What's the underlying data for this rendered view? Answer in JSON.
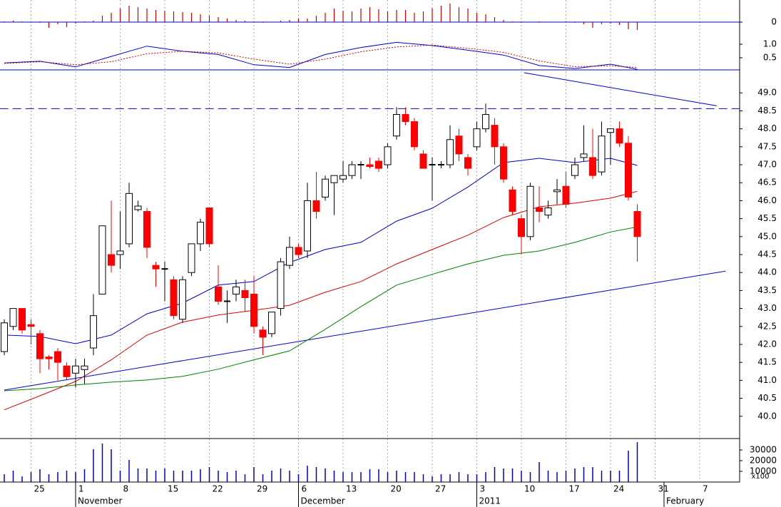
{
  "chart_data": {
    "type": "candlestick",
    "categories": [
      null,
      null,
      null,
      "25",
      null,
      null,
      null,
      null,
      "1",
      null,
      null,
      null,
      null,
      "8",
      null,
      null,
      null,
      null,
      "15",
      null,
      null,
      null,
      null,
      "22",
      null,
      null,
      null,
      null,
      "29",
      null,
      null,
      null,
      null,
      "6",
      null,
      null,
      null,
      null,
      "13",
      null,
      null,
      null,
      null,
      "20",
      null,
      null,
      null,
      null,
      "27",
      null,
      null,
      null,
      null,
      "3",
      null,
      null,
      null,
      null,
      "10",
      null,
      null,
      null,
      null,
      "17",
      null,
      null,
      null,
      null,
      "24",
      null,
      null,
      null,
      null,
      "31",
      null,
      null,
      null,
      null,
      "7",
      null,
      null,
      null,
      null
    ],
    "month_labels": [
      "November",
      "December",
      "2011",
      "February"
    ],
    "open": [
      41.8,
      42.5,
      43.0,
      42.55,
      42.3,
      41.65,
      41.8,
      41.4,
      41.2,
      41.3,
      41.9,
      43.4,
      44.5,
      44.5,
      44.8,
      45.75,
      45.7,
      44.2,
      44.1,
      43.8,
      42.7,
      44.0,
      44.8,
      45.8,
      43.6,
      43.2,
      43.4,
      43.5,
      43.4,
      42.4,
      42.3,
      43.0,
      44.2,
      44.7,
      44.6,
      46.0,
      46.1,
      46.5,
      46.6,
      46.7,
      47.0,
      47.0,
      47.1,
      47.0,
      47.8,
      48.4,
      48.2,
      47.3,
      47.0,
      47.0,
      47.0,
      47.8,
      47.2,
      47.5,
      48.0,
      48.1,
      47.5,
      46.3,
      45.5,
      45.0,
      45.8,
      45.6,
      46.25,
      46.4,
      46.7,
      47.2,
      47.2,
      46.8,
      47.9,
      48.0,
      47.6,
      45.7,
      null,
      null,
      null,
      null,
      null,
      null,
      null,
      null,
      null,
      null,
      null
    ],
    "high": [
      42.7,
      43.0,
      43.0,
      42.7,
      42.4,
      41.7,
      41.9,
      41.5,
      41.6,
      41.6,
      43.4,
      45.3,
      46.0,
      45.7,
      46.5,
      46.0,
      45.8,
      44.3,
      44.3,
      43.9,
      43.9,
      44.8,
      45.5,
      45.8,
      44.2,
      43.5,
      43.8,
      43.8,
      43.9,
      42.5,
      42.9,
      44.4,
      45.0,
      44.8,
      46.5,
      46.8,
      46.7,
      46.7,
      47.1,
      47.1,
      47.1,
      47.2,
      47.2,
      47.6,
      48.6,
      48.6,
      48.3,
      47.4,
      47.2,
      47.1,
      48.1,
      48.0,
      47.3,
      48.2,
      48.7,
      48.3,
      47.6,
      46.4,
      45.6,
      46.5,
      46.4,
      46.0,
      46.6,
      46.8,
      47.2,
      48.1,
      48.0,
      48.2,
      48.0,
      48.2,
      47.8,
      45.9,
      null,
      null,
      null,
      null,
      null,
      null,
      null,
      null,
      null,
      null,
      null
    ],
    "low": [
      41.7,
      42.4,
      42.3,
      42.0,
      41.2,
      41.3,
      41.0,
      41.0,
      40.8,
      40.9,
      41.7,
      43.4,
      44.0,
      44.1,
      44.7,
      45.7,
      44.4,
      43.6,
      43.2,
      42.7,
      42.6,
      43.9,
      44.6,
      44.7,
      43.1,
      42.6,
      43.2,
      42.9,
      42.3,
      41.7,
      42.2,
      42.8,
      44.1,
      44.4,
      44.4,
      45.5,
      46.0,
      45.6,
      46.5,
      46.6,
      46.6,
      46.9,
      46.8,
      46.9,
      47.7,
      48.1,
      47.4,
      46.9,
      46.0,
      46.9,
      46.9,
      47.1,
      46.7,
      47.4,
      47.9,
      47.0,
      46.5,
      45.6,
      44.5,
      44.9,
      45.4,
      45.5,
      45.9,
      45.8,
      46.6,
      47.1,
      46.6,
      46.7,
      47.0,
      47.5,
      46.0,
      44.3,
      null,
      null,
      null,
      null,
      null,
      null,
      null,
      null,
      null,
      null,
      null
    ],
    "close": [
      42.6,
      43.0,
      42.4,
      42.5,
      41.6,
      41.6,
      41.5,
      41.1,
      41.4,
      41.4,
      42.8,
      45.3,
      44.2,
      44.6,
      46.2,
      45.85,
      44.7,
      44.1,
      44.1,
      42.8,
      43.8,
      44.8,
      45.4,
      44.8,
      43.2,
      43.2,
      43.6,
      43.3,
      42.5,
      42.2,
      42.9,
      44.3,
      44.7,
      44.5,
      46.0,
      45.7,
      46.6,
      46.7,
      46.7,
      47.0,
      47.0,
      46.95,
      46.9,
      47.5,
      48.4,
      48.2,
      47.5,
      46.9,
      47.0,
      47.0,
      47.7,
      47.3,
      46.9,
      48.0,
      48.4,
      47.5,
      46.6,
      45.7,
      45.0,
      46.4,
      45.7,
      45.8,
      46.3,
      45.9,
      47.0,
      47.3,
      46.7,
      47.8,
      48.0,
      47.6,
      46.1,
      45.0,
      null,
      null,
      null,
      null,
      null,
      null,
      null,
      null,
      null,
      null,
      null
    ],
    "up_color": "#ffffff",
    "down_color": "#ff0000",
    "ylim": [
      39.38,
      49.64
    ],
    "yticks": [
      {
        "value": 40,
        "label": "40.0"
      },
      40.5,
      {
        "value": 41,
        "label": "41.0"
      },
      41.5,
      {
        "value": 42,
        "label": "42.0"
      },
      42.5,
      {
        "value": 43,
        "label": "43.0"
      },
      43.5,
      {
        "value": 44,
        "label": "44.0"
      },
      44.5,
      {
        "value": 45,
        "label": "45.0"
      },
      45.5,
      {
        "value": 46,
        "label": "46.0"
      },
      46.5,
      {
        "value": 47,
        "label": "47.0"
      },
      47.5,
      {
        "value": 48,
        "label": "48.0"
      },
      48.5,
      {
        "value": 49,
        "label": "49.0"
      }
    ],
    "xgrid": true,
    "moving_averages": [
      {
        "color": "#0000cc",
        "x": [
          0,
          4,
          8,
          12,
          16,
          20,
          24,
          28,
          32,
          36,
          40,
          44,
          48,
          52,
          56,
          60,
          64,
          68,
          71
        ],
        "values": [
          42.26,
          42.22,
          42.02,
          42.26,
          42.85,
          43.15,
          43.65,
          43.75,
          44.28,
          44.64,
          44.84,
          45.43,
          45.79,
          46.38,
          47.06,
          47.18,
          47.06,
          47.18,
          46.98
        ]
      },
      {
        "color": "#dd0000",
        "x": [
          0,
          4,
          8,
          12,
          16,
          20,
          24,
          28,
          32,
          36,
          40,
          44,
          48,
          52,
          56,
          60,
          64,
          68,
          71
        ],
        "values": [
          40.18,
          40.57,
          40.97,
          41.57,
          42.26,
          42.62,
          42.82,
          42.95,
          43.09,
          43.45,
          43.75,
          44.24,
          44.64,
          45.04,
          45.53,
          45.83,
          45.93,
          46.07,
          46.26
        ]
      },
      {
        "color": "#008000",
        "x": [
          0,
          4,
          8,
          12,
          16,
          20,
          24,
          28,
          32,
          36,
          40,
          44,
          48,
          52,
          56,
          60,
          64,
          68,
          71
        ],
        "values": [
          40.71,
          40.77,
          40.87,
          40.95,
          41.01,
          41.11,
          41.31,
          41.57,
          41.82,
          42.42,
          43.05,
          43.65,
          43.95,
          44.24,
          44.48,
          44.6,
          44.84,
          45.13,
          45.27
        ]
      }
    ],
    "trend_lines": [
      {
        "color": "#0000cc",
        "x": [
          0,
          80.9
        ],
        "values": [
          40.73,
          44.04
        ]
      },
      {
        "color": "#0000cc",
        "x": [
          58.3,
          79.9
        ],
        "values": [
          49.56,
          48.64
        ]
      },
      {
        "color": "#0000cc",
        "dashed": true,
        "x": [
          -0.5,
          82.5
        ],
        "values": [
          48.56,
          48.56
        ]
      }
    ],
    "histogram": {
      "color": "#cc0000",
      "ylim": [
        -0.14,
        0.31
      ],
      "yticks": [
        0
      ],
      "values": [
        0.01,
        0.02,
        0.01,
        0.0,
        -0.01,
        -0.08,
        -0.03,
        -0.07,
        -0.02,
        0.01,
        0.02,
        0.09,
        0.13,
        0.19,
        0.23,
        0.21,
        0.19,
        0.17,
        0.16,
        0.15,
        0.14,
        0.13,
        0.11,
        0.09,
        0.07,
        0.05,
        0.03,
        0.02,
        0.01,
        -0.01,
        0.0,
        0.02,
        0.03,
        0.05,
        0.05,
        0.09,
        0.13,
        0.19,
        0.16,
        0.15,
        0.19,
        0.21,
        0.18,
        0.15,
        0.17,
        0.17,
        0.13,
        0.15,
        0.19,
        0.23,
        0.26,
        0.21,
        0.19,
        0.13,
        0.11,
        0.07,
        0.03,
        0.01,
        -0.01,
        0.0,
        0.01,
        0.0,
        0.0,
        0.01,
        -0.01,
        -0.03,
        -0.08,
        -0.03,
        -0.02,
        -0.04,
        -0.1,
        -0.11,
        null,
        null,
        null,
        null,
        null,
        null,
        null,
        null,
        null,
        null,
        null
      ]
    },
    "macd": {
      "ylim": [
        0.05,
        1.45
      ],
      "yticks": [
        {
          "value": 1,
          "label": "1.0"
        },
        0.5
      ],
      "series": [
        {
          "color": "#0000cc",
          "x": [
            0,
            4,
            8,
            12,
            16,
            20,
            24,
            28,
            32,
            36,
            40,
            44,
            48,
            52,
            56,
            60,
            64,
            68,
            71
          ],
          "values": [
            0.31,
            0.37,
            0.16,
            0.55,
            0.93,
            0.74,
            0.62,
            0.24,
            0.14,
            0.62,
            0.88,
            1.07,
            0.95,
            0.78,
            0.6,
            0.21,
            0.1,
            0.26,
            0.07
          ]
        },
        {
          "color": "#cc0000",
          "dashed": true,
          "x": [
            0,
            4,
            8,
            12,
            16,
            20,
            24,
            28,
            32,
            36,
            40,
            44,
            48,
            52,
            56,
            60,
            64,
            68,
            71
          ],
          "values": [
            0.29,
            0.35,
            0.24,
            0.35,
            0.65,
            0.74,
            0.68,
            0.45,
            0.26,
            0.45,
            0.72,
            0.9,
            0.97,
            0.85,
            0.7,
            0.38,
            0.17,
            0.2,
            0.14
          ]
        }
      ]
    },
    "volume": {
      "color": "#0000cc",
      "ylim": [
        0,
        40000
      ],
      "yticks": [
        30000,
        20000,
        10000
      ],
      "unit_label": "x100",
      "values": [
        7300,
        10700,
        5300,
        9300,
        12000,
        7300,
        9300,
        10700,
        9300,
        12000,
        30700,
        36000,
        30700,
        10700,
        20700,
        12700,
        12700,
        10700,
        12700,
        10700,
        10700,
        10700,
        12000,
        14000,
        10700,
        9300,
        10700,
        7300,
        14000,
        7300,
        10700,
        12700,
        10700,
        7300,
        15300,
        14000,
        12700,
        10700,
        9300,
        9300,
        9300,
        12000,
        12000,
        9300,
        10700,
        9300,
        9300,
        7300,
        5300,
        7300,
        7300,
        9300,
        7300,
        7300,
        9300,
        14000,
        12700,
        12700,
        10700,
        9300,
        18700,
        10700,
        9300,
        10700,
        12700,
        14000,
        14000,
        10700,
        10700,
        10700,
        29300,
        37300,
        null,
        null,
        null,
        null,
        null,
        null,
        null,
        null,
        null,
        null,
        null
      ]
    }
  }
}
